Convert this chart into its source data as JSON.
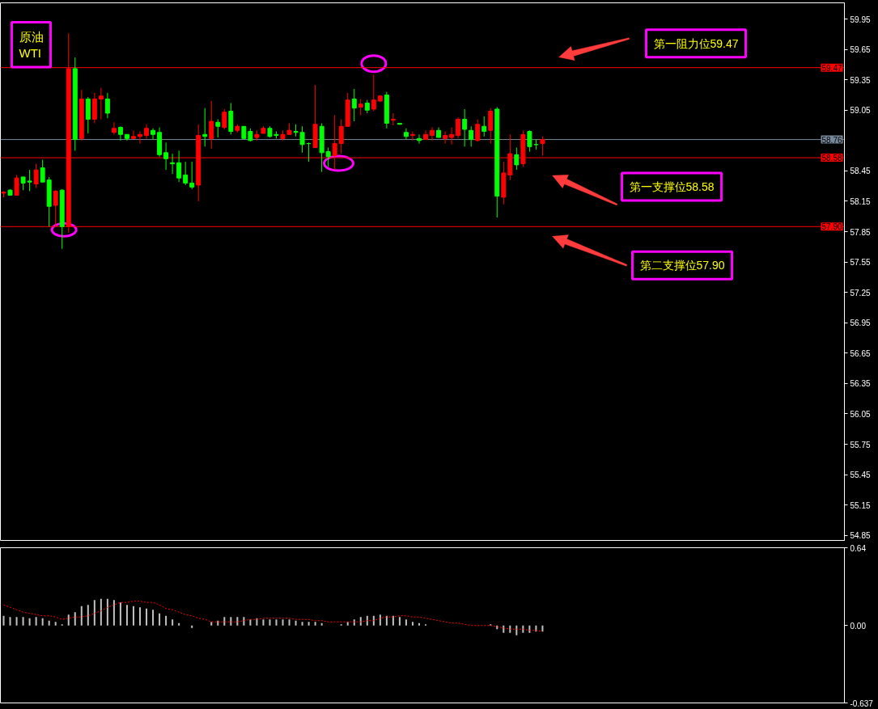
{
  "chart_data": [
    {
      "type": "candlestick",
      "title": "原油\nWTI",
      "categories": [
        null,
        null,
        null,
        null,
        null,
        null,
        null,
        null,
        null,
        null,
        null,
        null,
        null,
        null,
        null,
        null,
        null,
        null,
        null,
        null,
        null,
        null,
        null,
        null,
        null,
        null,
        null,
        null,
        null,
        null,
        null,
        null,
        null,
        null,
        null,
        null,
        null,
        null,
        null,
        null,
        null,
        null,
        null,
        null,
        null,
        null,
        null,
        null,
        null,
        null,
        null,
        null,
        null,
        null,
        null,
        null,
        null,
        null,
        null,
        null,
        null,
        null,
        null,
        null,
        null,
        null,
        null,
        null,
        null,
        null,
        null,
        null,
        null,
        null,
        null,
        null,
        null,
        null,
        null,
        null,
        null,
        null,
        null,
        null,
        null,
        null,
        null,
        null,
        null,
        null,
        null,
        null,
        null,
        null,
        null,
        null,
        null,
        null,
        null,
        null,
        null,
        null,
        null,
        null,
        null,
        null,
        null,
        null,
        null,
        null,
        null,
        null,
        null,
        null,
        null,
        null,
        null,
        null,
        null,
        null,
        null,
        null,
        null,
        null,
        null,
        null,
        null,
        null,
        null,
        null
      ],
      "ohlc": [
        [
          58.23,
          58.25,
          58.19,
          58.24
        ],
        [
          58.26,
          58.27,
          58.21,
          58.21
        ],
        [
          58.21,
          58.41,
          58.21,
          58.38
        ],
        [
          58.39,
          58.39,
          58.26,
          58.33
        ],
        [
          58.35,
          58.46,
          58.25,
          58.34
        ],
        [
          58.32,
          58.52,
          58.28,
          58.46
        ],
        [
          58.48,
          58.56,
          58.34,
          58.34
        ],
        [
          58.36,
          58.39,
          57.9,
          58.1
        ],
        [
          58.11,
          58.26,
          57.9,
          58.25
        ],
        [
          58.26,
          58.27,
          57.68,
          57.9
        ],
        [
          57.9,
          59.81,
          57.84,
          59.46
        ],
        [
          59.46,
          59.57,
          58.65,
          58.76
        ],
        [
          58.77,
          59.25,
          58.75,
          59.16
        ],
        [
          59.16,
          59.18,
          58.82,
          58.96
        ],
        [
          58.96,
          59.22,
          58.92,
          59.16
        ],
        [
          59.16,
          59.27,
          58.96,
          59.19
        ],
        [
          59.16,
          59.22,
          58.97,
          59.02
        ],
        [
          58.83,
          58.93,
          58.81,
          58.87
        ],
        [
          58.88,
          58.89,
          58.75,
          58.81
        ],
        [
          58.81,
          58.81,
          58.75,
          58.77
        ],
        [
          58.77,
          58.85,
          58.77,
          58.79
        ],
        [
          58.79,
          58.84,
          58.72,
          58.81
        ],
        [
          58.8,
          58.91,
          58.77,
          58.87
        ],
        [
          58.85,
          58.87,
          58.76,
          58.81
        ],
        [
          58.83,
          58.88,
          58.59,
          58.61
        ],
        [
          58.63,
          58.73,
          58.46,
          58.57
        ],
        [
          58.53,
          58.62,
          58.42,
          58.52
        ],
        [
          58.53,
          58.65,
          58.34,
          58.38
        ],
        [
          58.41,
          58.54,
          58.31,
          58.33
        ],
        [
          58.33,
          58.54,
          58.27,
          58.29
        ],
        [
          58.31,
          58.91,
          58.15,
          58.8
        ],
        [
          58.81,
          59.07,
          58.69,
          58.79
        ],
        [
          58.77,
          59.14,
          58.67,
          58.94
        ],
        [
          58.93,
          58.96,
          58.78,
          58.89
        ],
        [
          58.88,
          59.06,
          58.86,
          59.03
        ],
        [
          59.04,
          59.12,
          58.81,
          58.84
        ],
        [
          58.85,
          58.91,
          58.83,
          58.89
        ],
        [
          58.89,
          58.89,
          58.77,
          58.77
        ],
        [
          58.84,
          58.87,
          58.74,
          58.75
        ],
        [
          58.78,
          58.85,
          58.75,
          58.81
        ],
        [
          58.82,
          58.89,
          58.82,
          58.87
        ],
        [
          58.87,
          58.89,
          58.78,
          58.79
        ],
        [
          58.81,
          58.84,
          58.77,
          58.8
        ],
        [
          58.77,
          58.85,
          58.75,
          58.81
        ],
        [
          58.81,
          58.92,
          58.81,
          58.85
        ],
        [
          58.84,
          58.91,
          58.79,
          58.83
        ],
        [
          58.83,
          58.89,
          58.63,
          58.71
        ],
        [
          58.72,
          58.73,
          58.54,
          58.72
        ],
        [
          58.68,
          59.3,
          58.68,
          58.91
        ],
        [
          58.89,
          58.92,
          58.44,
          58.63
        ],
        [
          58.64,
          58.68,
          58.49,
          58.59
        ],
        [
          58.6,
          59.0,
          58.46,
          58.72
        ],
        [
          58.72,
          58.96,
          58.62,
          58.89
        ],
        [
          58.89,
          59.22,
          58.89,
          59.15
        ],
        [
          59.16,
          59.26,
          58.94,
          59.07
        ],
        [
          59.08,
          59.16,
          59.0,
          59.11
        ],
        [
          59.12,
          59.15,
          59.02,
          59.05
        ],
        [
          59.06,
          59.4,
          59.04,
          59.15
        ],
        [
          59.14,
          59.2,
          59.13,
          59.19
        ],
        [
          59.2,
          59.23,
          58.87,
          58.92
        ],
        [
          58.95,
          59.02,
          58.9,
          58.96
        ],
        [
          58.92,
          58.92,
          58.91,
          58.91
        ],
        [
          58.83,
          58.87,
          58.76,
          58.79
        ],
        [
          58.8,
          58.84,
          58.75,
          58.81
        ],
        [
          58.77,
          58.81,
          58.72,
          58.75
        ],
        [
          58.76,
          58.85,
          58.76,
          58.81
        ],
        [
          58.8,
          58.88,
          58.75,
          58.85
        ],
        [
          58.85,
          58.88,
          58.78,
          58.78
        ],
        [
          58.77,
          58.84,
          58.72,
          58.8
        ],
        [
          58.78,
          58.88,
          58.71,
          58.81
        ],
        [
          58.8,
          58.98,
          58.77,
          58.96
        ],
        [
          58.96,
          59.06,
          58.69,
          58.86
        ],
        [
          58.85,
          58.89,
          58.69,
          58.76
        ],
        [
          58.75,
          58.96,
          58.74,
          58.91
        ],
        [
          58.89,
          58.99,
          58.79,
          58.84
        ],
        [
          58.85,
          59.07,
          58.72,
          59.04
        ],
        [
          59.06,
          59.08,
          57.99,
          58.2
        ],
        [
          58.19,
          58.54,
          58.12,
          58.43
        ],
        [
          58.41,
          58.81,
          58.36,
          58.62
        ],
        [
          58.61,
          58.68,
          58.46,
          58.51
        ],
        [
          58.52,
          58.85,
          58.49,
          58.81
        ],
        [
          58.84,
          58.85,
          58.64,
          58.69
        ],
        [
          58.71,
          58.76,
          58.66,
          58.71
        ],
        [
          58.72,
          58.79,
          58.6,
          58.76
        ],
        null,
        null,
        null,
        null,
        null,
        null,
        null,
        null,
        null,
        null,
        null,
        null,
        null,
        null,
        null,
        null,
        null,
        null,
        null,
        null,
        null,
        null,
        null,
        null,
        null,
        null,
        null,
        null,
        null,
        null,
        null,
        null,
        null,
        null,
        null,
        null,
        null,
        null,
        null,
        null,
        null,
        null,
        null,
        null,
        null,
        null
      ],
      "colors": [
        "#ff0000",
        "#00ff00",
        "#ff0000",
        "#00ff00",
        "#00ff00",
        "#ff0000",
        "#00ff00",
        "#00ff00",
        "#ff0000",
        "#00ff00",
        "#ff0000",
        "#00ff00",
        "#ff0000",
        "#00ff00",
        "#ff0000",
        "#ff0000",
        "#00ff00",
        "#ff0000",
        "#00ff00",
        "#00ff00",
        "#ff0000",
        "#ff0000",
        "#ff0000",
        "#00ff00",
        "#00ff00",
        "#00ff00",
        "#00ff00",
        "#00ff00",
        "#00ff00",
        "#00ff00",
        "#ff0000",
        "#00ff00",
        "#ff0000",
        "#00ff00",
        "#ff0000",
        "#00ff00",
        "#ff0000",
        "#00ff00",
        "#00ff00",
        "#ff0000",
        "#ff0000",
        "#00ff00",
        "#00ff00",
        "#ff0000",
        "#ff0000",
        "#00ff00",
        "#00ff00",
        "#00ff00",
        "#ff0000",
        "#00ff00",
        "#00ff00",
        "#ff0000",
        "#ff0000",
        "#ff0000",
        "#00ff00",
        "#ff0000",
        "#00ff00",
        "#ff0000",
        "#ff0000",
        "#00ff00",
        "#ff0000",
        "#00ff00",
        "#00ff00",
        "#ff0000",
        "#00ff00",
        "#ff0000",
        "#ff0000",
        "#00ff00",
        "#ff0000",
        "#ff0000",
        "#ff0000",
        "#00ff00",
        "#00ff00",
        "#ff0000",
        "#00ff00",
        "#ff0000",
        "#00ff00",
        "#ff0000",
        "#ff0000",
        "#00ff00",
        "#ff0000",
        "#00ff00",
        "#00ff00",
        "#ff0000",
        null,
        null,
        null,
        null,
        null,
        null,
        null,
        null,
        null,
        null,
        null,
        null,
        null,
        null,
        null,
        null,
        null,
        null,
        null,
        null,
        null,
        null,
        null,
        null,
        null,
        null,
        null,
        null,
        null,
        null,
        null,
        null,
        null,
        null,
        null,
        null,
        null,
        null,
        null,
        null,
        null,
        null,
        null,
        null,
        null,
        null
      ],
      "ylim": [
        54.8,
        60.11
      ],
      "yticks": [
        59.95,
        59.65,
        59.35,
        59.05,
        58.45,
        58.15,
        57.85,
        57.55,
        57.25,
        56.95,
        56.65,
        56.35,
        56.05,
        55.75,
        55.45,
        55.15,
        54.85
      ],
      "tick_labels": "y",
      "ref_lines": [
        {
          "axis": "y",
          "value": 59.47,
          "label": "59.47",
          "color": "#ff0000"
        },
        {
          "axis": "y",
          "value": 58.76,
          "label": "58.76",
          "color": "#778899"
        },
        {
          "axis": "y",
          "value": 58.58,
          "label": "58.58",
          "color": "#ff0000"
        },
        {
          "axis": "y",
          "value": 57.9,
          "label": "57.90",
          "color": "#ff0000"
        }
      ],
      "annotations": [
        {
          "text": "第一阻力位59.47",
          "y": 59.47
        },
        {
          "text": "第一支撑位58.58",
          "y": 58.58
        },
        {
          "text": "第二支撑位57.90",
          "y": 57.9
        }
      ]
    },
    {
      "type": "bar",
      "categories": [
        null,
        null,
        null,
        null,
        null,
        null,
        null,
        null,
        null,
        null,
        null,
        null,
        null,
        null,
        null,
        null,
        null,
        null,
        null,
        null,
        null,
        null,
        null,
        null,
        null,
        null,
        null,
        null,
        null,
        null,
        null,
        null,
        null,
        null,
        null,
        null,
        null,
        null,
        null,
        null,
        null,
        null,
        null,
        null,
        null,
        null,
        null,
        null,
        null,
        null,
        null,
        null,
        null,
        null,
        null,
        null,
        null,
        null,
        null,
        null,
        null,
        null,
        null,
        null,
        null,
        null,
        null,
        null,
        null,
        null,
        null,
        null,
        null,
        null,
        null,
        null,
        null,
        null,
        null,
        null,
        null,
        null,
        null,
        null,
        null,
        null,
        null,
        null,
        null,
        null,
        null,
        null,
        null,
        null,
        null,
        null,
        null,
        null,
        null,
        null,
        null,
        null,
        null,
        null,
        null,
        null,
        null,
        null,
        null,
        null,
        null,
        null,
        null,
        null,
        null,
        null,
        null,
        null,
        null,
        null,
        null,
        null,
        null,
        null,
        null,
        null,
        null,
        null,
        null,
        null
      ],
      "series": [
        {
          "type": "bar",
          "color": "#c0c0c0",
          "values": [
            0.08,
            0.07,
            0.07,
            0.07,
            0.06,
            0.07,
            0.06,
            0.04,
            0.03,
            0.01,
            0.09,
            0.11,
            0.16,
            0.17,
            0.21,
            0.22,
            0.22,
            0.21,
            0.19,
            0.17,
            0.16,
            0.15,
            0.14,
            0.13,
            0.1,
            0.08,
            0.05,
            0.02,
            0.0,
            -0.02,
            0.0,
            0.0,
            0.03,
            0.04,
            0.07,
            0.07,
            0.07,
            0.07,
            0.05,
            0.06,
            0.05,
            0.05,
            0.05,
            0.05,
            0.05,
            0.04,
            0.03,
            0.03,
            0.03,
            0.02,
            0.0,
            0.0,
            0.01,
            0.03,
            0.05,
            0.07,
            0.08,
            0.08,
            0.09,
            0.08,
            0.08,
            0.07,
            0.05,
            0.03,
            0.02,
            0.01,
            0.0,
            0.0,
            0.0,
            0.0,
            0.0,
            0.0,
            0.0,
            0.0,
            0.0,
            0.01,
            -0.03,
            -0.06,
            -0.06,
            -0.08,
            -0.06,
            -0.06,
            -0.05,
            -0.05,
            null,
            null,
            null,
            null,
            null,
            null,
            null,
            null,
            null,
            null,
            null,
            null,
            null,
            null,
            null,
            null,
            null,
            null,
            null,
            null,
            null,
            null,
            null,
            null,
            null,
            null,
            null,
            null,
            null,
            null,
            null,
            null,
            null,
            null,
            null,
            null,
            null,
            null,
            null,
            null,
            null,
            null,
            null,
            null,
            null,
            null
          ]
        },
        {
          "type": "line",
          "color": "#ff0000",
          "values": [
            0.17,
            0.15,
            0.13,
            0.11,
            0.1,
            0.09,
            0.08,
            0.08,
            0.07,
            0.05,
            0.06,
            0.07,
            0.07,
            0.08,
            0.1,
            0.12,
            0.15,
            0.17,
            0.19,
            0.19,
            0.2,
            0.2,
            0.19,
            0.19,
            0.17,
            0.14,
            0.13,
            0.11,
            0.09,
            0.08,
            0.06,
            0.05,
            0.03,
            0.03,
            0.03,
            0.03,
            0.03,
            0.04,
            0.05,
            0.05,
            0.06,
            0.06,
            0.06,
            0.06,
            0.06,
            0.05,
            0.05,
            0.05,
            0.04,
            0.04,
            0.03,
            0.03,
            0.03,
            0.03,
            0.03,
            0.03,
            0.04,
            0.04,
            0.06,
            0.07,
            0.07,
            0.08,
            0.08,
            0.07,
            0.07,
            0.06,
            0.05,
            0.04,
            0.03,
            0.02,
            0.02,
            0.01,
            0.0,
            0.0,
            0.0,
            0.0,
            -0.01,
            -0.02,
            -0.03,
            -0.03,
            -0.03,
            -0.04,
            -0.04,
            -0.05,
            null,
            null,
            null,
            null,
            null,
            null,
            null,
            null,
            null,
            null,
            null,
            null,
            null,
            null,
            null,
            null,
            null,
            null,
            null,
            null,
            null,
            null,
            null,
            null,
            null,
            null,
            null,
            null,
            null,
            null,
            null,
            null,
            null,
            null,
            null,
            null,
            null,
            null,
            null,
            null,
            null,
            null,
            null,
            null,
            null,
            null
          ]
        }
      ],
      "ylim": [
        -0.637,
        0.64
      ],
      "yticks": [
        0.64,
        {
          "value": 0,
          "label": "0.00"
        },
        -0.637
      ],
      "tick_labels": "y",
      "line_style": "dotted"
    }
  ]
}
